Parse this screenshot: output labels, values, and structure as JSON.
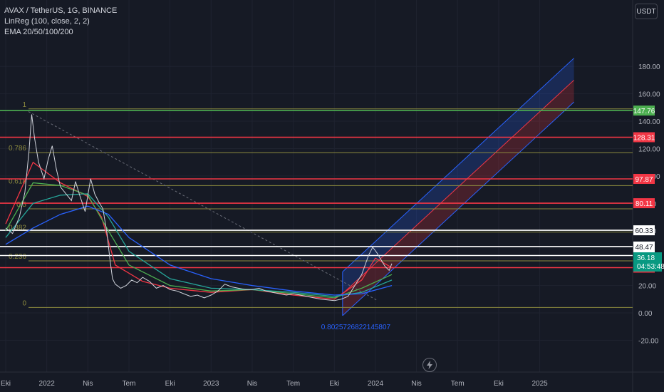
{
  "legend": {
    "symbol": "AVAX / TetherUS, 1G, BINANCE",
    "indicator1": "LinReg (100, close, 2, 2)",
    "indicator2": "EMA 20/50/100/200"
  },
  "currency": "USDT",
  "chart_data": {
    "type": "line",
    "title": "AVAX / TetherUS, 1G, BINANCE",
    "ylim": [
      -28,
      195
    ],
    "y_ticks": [
      -20,
      0,
      20,
      40,
      60,
      80,
      100,
      120,
      140,
      160,
      180
    ],
    "y_tick_labels": [
      "-20.00",
      "0.00",
      "20.00",
      "40.00",
      "60.00",
      "80.00",
      "100.00",
      "120.00",
      "140.00",
      "160.00",
      "180.00"
    ],
    "x_labels": [
      "Eki",
      "2022",
      "Nis",
      "Tem",
      "Eki",
      "2023",
      "Nis",
      "Tem",
      "Eki",
      "2024",
      "Nis",
      "Tem",
      "Eki",
      "2025"
    ],
    "x_label_months": [
      0,
      3,
      6,
      9,
      12,
      15,
      18,
      21,
      24,
      27,
      30,
      33,
      36,
      39
    ],
    "x_range_months": [
      0,
      41.5
    ],
    "price_series": [
      [
        0,
        62
      ],
      [
        0.5,
        58
      ],
      [
        1.0,
        70
      ],
      [
        1.4,
        88
      ],
      [
        1.7,
        118
      ],
      [
        1.9,
        145
      ],
      [
        2.1,
        128
      ],
      [
        2.4,
        110
      ],
      [
        2.8,
        98
      ],
      [
        3.1,
        112
      ],
      [
        3.4,
        122
      ],
      [
        3.7,
        105
      ],
      [
        4.0,
        92
      ],
      [
        4.4,
        87
      ],
      [
        4.8,
        82
      ],
      [
        5.1,
        96
      ],
      [
        5.4,
        86
      ],
      [
        5.8,
        74
      ],
      [
        6.2,
        98
      ],
      [
        6.5,
        87
      ],
      [
        6.8,
        81
      ],
      [
        7.1,
        76
      ],
      [
        7.4,
        58
      ],
      [
        7.6,
        40
      ],
      [
        7.8,
        25
      ],
      [
        8.0,
        21
      ],
      [
        8.4,
        18
      ],
      [
        8.8,
        20
      ],
      [
        9.2,
        24
      ],
      [
        9.6,
        22
      ],
      [
        10.0,
        26
      ],
      [
        10.5,
        23
      ],
      [
        11,
        18
      ],
      [
        11.5,
        20
      ],
      [
        12,
        17
      ],
      [
        12.5,
        16
      ],
      [
        13,
        14
      ],
      [
        13.5,
        12
      ],
      [
        14,
        13
      ],
      [
        14.5,
        11
      ],
      [
        15,
        13
      ],
      [
        15.5,
        16
      ],
      [
        16,
        21
      ],
      [
        16.5,
        19
      ],
      [
        17,
        18
      ],
      [
        17.5,
        17
      ],
      [
        18,
        17
      ],
      [
        18.5,
        18
      ],
      [
        19,
        16
      ],
      [
        19.5,
        15
      ],
      [
        20,
        14
      ],
      [
        20.5,
        13
      ],
      [
        21,
        14
      ],
      [
        21.5,
        13
      ],
      [
        22,
        12
      ],
      [
        22.5,
        11
      ],
      [
        23,
        10
      ],
      [
        23.5,
        9.5
      ],
      [
        24,
        9
      ],
      [
        24.5,
        10
      ],
      [
        25,
        12
      ],
      [
        25.5,
        20
      ],
      [
        26,
        28
      ],
      [
        26.5,
        42
      ],
      [
        26.8,
        48
      ],
      [
        27.1,
        44
      ],
      [
        27.4,
        39
      ],
      [
        27.7,
        34
      ],
      [
        28,
        31
      ],
      [
        28.2,
        36
      ]
    ],
    "ema_series": [
      {
        "color": "#f23645",
        "values": [
          [
            0,
            65
          ],
          [
            2,
            110
          ],
          [
            4,
            95
          ],
          [
            6,
            85
          ],
          [
            7,
            70
          ],
          [
            8,
            35
          ],
          [
            10,
            23
          ],
          [
            12,
            18
          ],
          [
            15,
            15
          ],
          [
            18,
            17
          ],
          [
            21,
            13
          ],
          [
            24,
            10
          ],
          [
            26,
            24
          ],
          [
            27,
            40
          ],
          [
            28.2,
            33
          ]
        ]
      },
      {
        "color": "#4caf50",
        "values": [
          [
            0,
            60
          ],
          [
            2,
            95
          ],
          [
            4,
            93
          ],
          [
            6,
            86
          ],
          [
            7.5,
            60
          ],
          [
            9,
            35
          ],
          [
            12,
            20
          ],
          [
            15,
            16
          ],
          [
            18,
            17
          ],
          [
            21,
            14
          ],
          [
            24,
            11
          ],
          [
            26,
            18
          ],
          [
            28.2,
            28
          ]
        ]
      },
      {
        "color": "#26a69a",
        "values": [
          [
            0,
            55
          ],
          [
            2,
            80
          ],
          [
            4,
            86
          ],
          [
            6,
            87
          ],
          [
            7.5,
            70
          ],
          [
            9,
            45
          ],
          [
            12,
            25
          ],
          [
            15,
            18
          ],
          [
            18,
            17
          ],
          [
            21,
            15
          ],
          [
            24,
            12
          ],
          [
            26,
            15
          ],
          [
            28.2,
            24
          ]
        ]
      },
      {
        "color": "#2962ff",
        "values": [
          [
            0,
            50
          ],
          [
            2,
            62
          ],
          [
            4,
            72
          ],
          [
            6,
            78
          ],
          [
            7.5,
            72
          ],
          [
            9,
            55
          ],
          [
            12,
            35
          ],
          [
            15,
            25
          ],
          [
            18,
            20
          ],
          [
            21,
            16
          ],
          [
            24,
            13
          ],
          [
            26,
            14
          ],
          [
            28.2,
            20
          ]
        ]
      }
    ],
    "horizontal_levels": [
      {
        "value": 147.76,
        "label": "147.76",
        "color": "#4caf50"
      },
      {
        "value": 128.31,
        "label": "128.31",
        "color": "#f23645"
      },
      {
        "value": 97.87,
        "label": "97.87",
        "color": "#f23645"
      },
      {
        "value": 80.11,
        "label": "80.11",
        "color": "#f23645"
      },
      {
        "value": 60.33,
        "label": "60.33",
        "color": "#ffffff"
      },
      {
        "value": 48.47,
        "label": "48.47",
        "color": "#ffffff"
      },
      {
        "value": 41.91,
        "label": "41.91",
        "color": "#ffffff"
      },
      {
        "value": 33.06,
        "label": "33.06",
        "color": "#f23645"
      }
    ],
    "fib_levels": [
      {
        "ratio": "1",
        "value": 149
      },
      {
        "ratio": "0.786",
        "value": 117
      },
      {
        "ratio": "0.618",
        "value": 93
      },
      {
        "ratio": "0.5",
        "value": 76
      },
      {
        "ratio": "0.382",
        "value": 59
      },
      {
        "ratio": "0.236",
        "value": 38
      },
      {
        "ratio": "0",
        "value": 4
      }
    ],
    "fib_label_values": [
      "1",
      "0.786",
      "0.618",
      "0.5",
      "0.382",
      "0.236",
      "0"
    ],
    "regression_channel": {
      "start_month": 24.6,
      "end_month": 41.5,
      "mid_start": 14,
      "mid_end": 170,
      "upper_start": 30,
      "upper_end": 186,
      "lower_start": -2,
      "lower_end": 154
    },
    "pearson_label": "0.8025726822145807",
    "last_price": "36.18",
    "countdown": "04:53:48"
  }
}
